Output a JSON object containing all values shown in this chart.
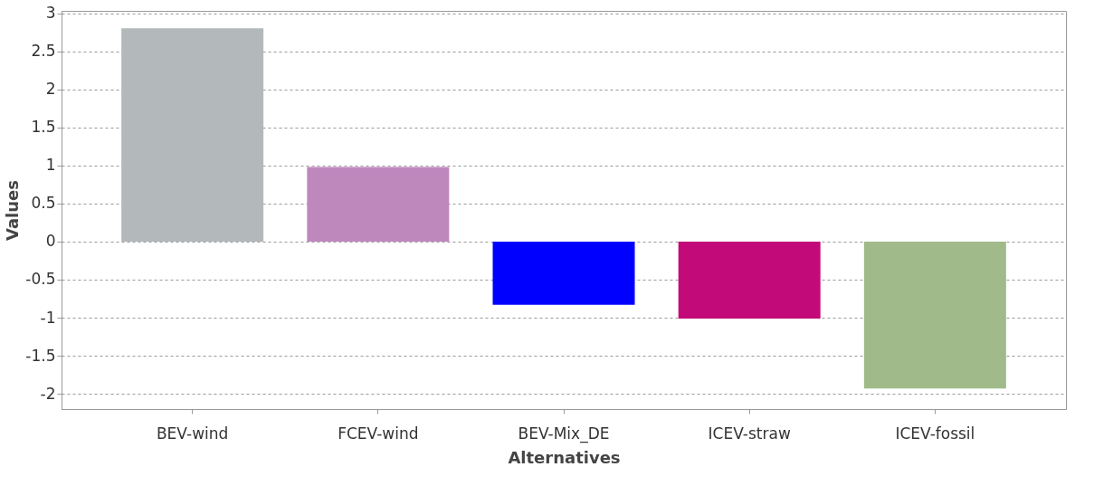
{
  "chart_data": {
    "type": "bar",
    "xlabel": "Alternatives",
    "ylabel": "Values",
    "categories": [
      "BEV-wind",
      "FCEV-wind",
      "BEV-Mix_DE",
      "ICEV-straw",
      "ICEV-fossil"
    ],
    "values": [
      2.8,
      0.98,
      -0.83,
      -1.01,
      -1.93
    ],
    "colors": [
      "#b3b8bb",
      "#bf88bd",
      "#0000ff",
      "#c20a78",
      "#a0bb89"
    ],
    "ylim": [
      -2.2,
      3.03
    ],
    "yticks": [
      -2,
      -1.5,
      -1,
      -0.5,
      0,
      0.5,
      1,
      1.5,
      2,
      2.5,
      3
    ],
    "grid": "y",
    "legend": false
  }
}
